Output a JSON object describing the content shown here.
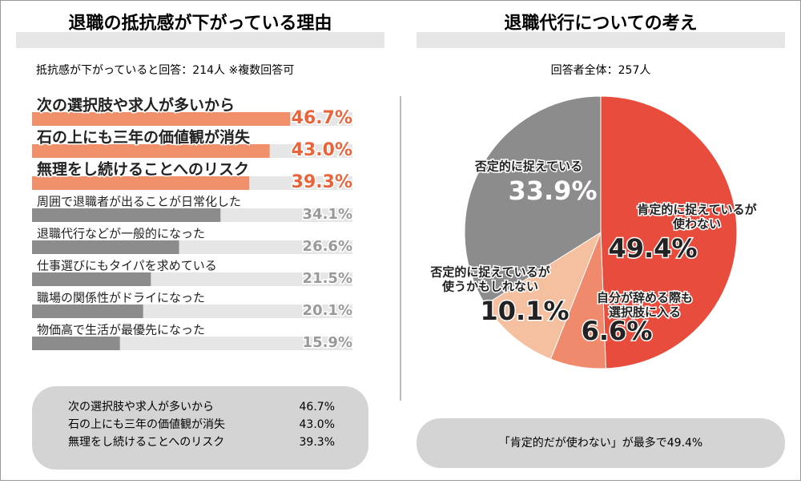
{
  "charts": [
    {
      "chart_data": {
        "type": "hbar",
        "title": "退職の抵抗感が下がっている理由",
        "subtitle": "抵抗感が下がっていると回答：214人 ※複数回答可",
        "categories": [
          "次の選択肢や求人が多いから",
          "石の上にも三年の価値観が消失",
          "無理をし続けることへのリスク",
          "周囲で退職者が出ることが日常化した",
          "退職代行などが一般的になった",
          "仕事選びにもタイパを求めている",
          "職場の関係性がドライになった",
          "物価高で生活が最優先になった"
        ],
        "values": [
          46.7,
          43.0,
          39.3,
          34.1,
          26.6,
          21.5,
          20.1,
          15.9
        ],
        "value_labels": [
          "46.7%",
          "43.0%",
          "39.3%",
          "34.1%",
          "26.6%",
          "21.5%",
          "20.1%",
          "15.9%"
        ],
        "colors": [
          "#f0906a",
          "#f0906a",
          "#f0906a",
          "#8c8c8c",
          "#8c8c8c",
          "#8c8c8c",
          "#8c8c8c",
          "#8c8c8c"
        ],
        "summary": [
          [
            "次の選択肢や求人が多いから",
            "46.7%"
          ],
          [
            "石の上にも三年の価値観が消失",
            "43.0%"
          ],
          [
            "無理をし続けることへのリスク",
            "39.3%"
          ]
        ]
      }
    },
    {
      "chart_data": {
        "type": "pie",
        "title": "退職代行についての考え",
        "subtitle": "回答者全体：257人",
        "categories": [
          [
            "肯定的に捉えているが",
            "使わない"
          ],
          [
            "自分が辞める際も",
            "選択肢に入る"
          ],
          [
            "否定的に捉えているが",
            "使うかもしれない"
          ],
          [
            "否定的に捉えている"
          ]
        ],
        "values": [
          49.4,
          6.6,
          10.1,
          33.9
        ],
        "value_labels": [
          "49.4%",
          "6.6%",
          "10.1%",
          "33.9%"
        ],
        "colors": [
          "#e84c3d",
          "#ef8a6c",
          "#f5c0a0",
          "#8c8c8c"
        ],
        "note": "「肯定的だが使わない」が最多で49.4%"
      }
    }
  ]
}
